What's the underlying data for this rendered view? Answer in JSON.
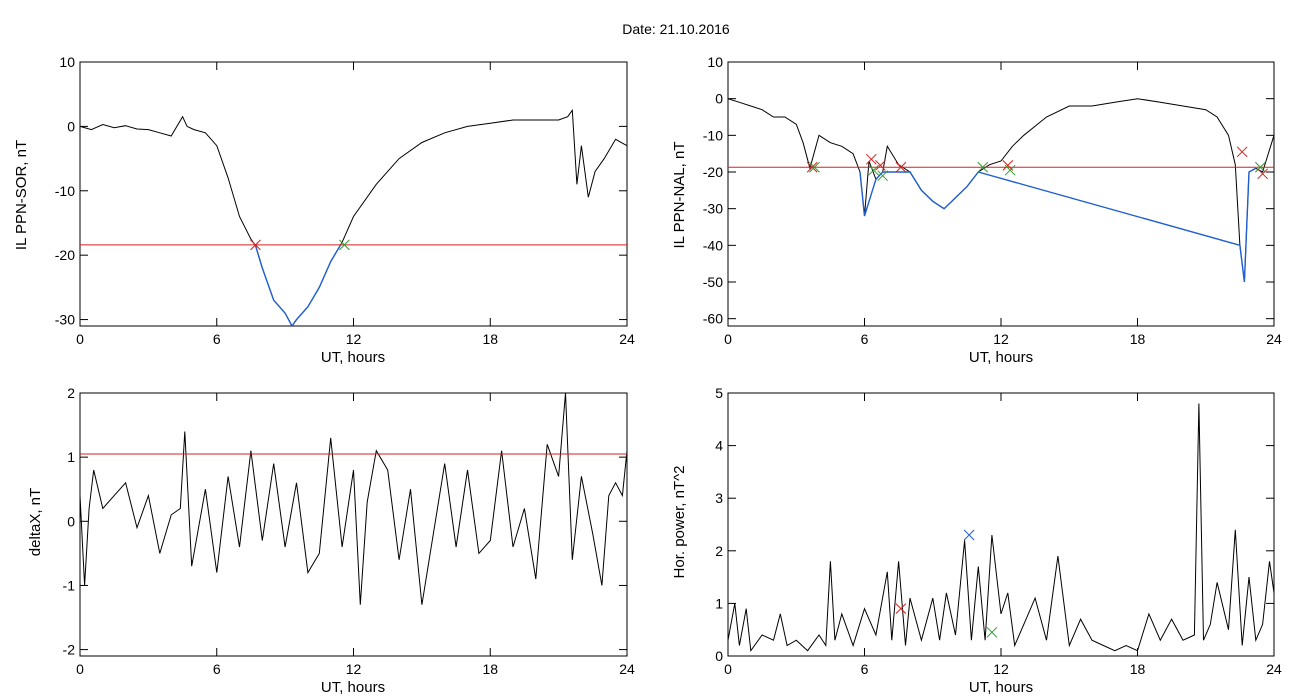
{
  "figure": {
    "title": "Date:  21.10.2016"
  },
  "chart_data": [
    {
      "id": "p1",
      "type": "line",
      "ylabel": "IL PPN-SOR, nT",
      "xlabel": "UT, hours",
      "xlim": [
        0,
        24
      ],
      "ylim": [
        -31,
        10
      ],
      "xticks": [
        0,
        6,
        12,
        18,
        24
      ],
      "yticks": [
        -30,
        -20,
        -10,
        0,
        10
      ],
      "colors": {
        "main": "#000000",
        "highlight": "#1f5fd0",
        "threshold": "#d8201c",
        "start": "#d8201c",
        "end": "#2ca02c"
      },
      "series": [
        {
          "x": [
            0,
            0.5,
            1,
            1.5,
            2,
            2.5,
            3,
            3.5,
            4,
            4.5,
            4.7,
            5,
            5.5,
            6,
            6.5,
            7,
            7.5,
            7.7,
            8,
            8.5,
            9,
            9.3,
            9.5,
            10,
            10.5,
            11,
            11.5,
            12,
            13,
            14,
            15,
            16,
            17,
            18,
            19,
            20,
            21,
            21.4,
            21.6,
            21.8,
            22,
            22.3,
            22.6,
            23,
            23.5,
            24
          ],
          "y": [
            0,
            -0.5,
            0.3,
            -0.2,
            0.1,
            -0.4,
            -0.5,
            -1,
            -1.5,
            1.5,
            0,
            -0.5,
            -1,
            -3,
            -8,
            -14,
            -17.5,
            -18.5,
            -22,
            -27,
            -29,
            -31,
            -30,
            -28,
            -25,
            -21,
            -18,
            -14,
            -9,
            -5,
            -2.5,
            -1,
            0,
            0.5,
            1,
            1,
            1,
            1.5,
            2.5,
            -9,
            -3,
            -11,
            -7,
            -5,
            -2,
            -3
          ]
        }
      ],
      "highlight_range": [
        7.7,
        11.6
      ],
      "threshold": -18.4,
      "markers": [
        {
          "x": 7.7,
          "y": -18.4,
          "kind": "start"
        },
        {
          "x": 11.6,
          "y": -18.4,
          "kind": "end"
        }
      ]
    },
    {
      "id": "p2",
      "type": "line",
      "ylabel": "IL PPN-NAL, nT",
      "xlabel": "UT, hours",
      "xlim": [
        0,
        24
      ],
      "ylim": [
        -62,
        10
      ],
      "xticks": [
        0,
        6,
        12,
        18,
        24
      ],
      "yticks": [
        -60,
        -50,
        -40,
        -30,
        -20,
        -10,
        0,
        10
      ],
      "colors": {
        "main": "#000000",
        "highlight": "#1f5fd0",
        "threshold": "#d8201c",
        "start": "#d8201c",
        "end": "#2ca02c"
      },
      "series": [
        {
          "x": [
            0,
            0.5,
            1,
            1.5,
            2,
            2.5,
            3,
            3.3,
            3.6,
            4,
            4.5,
            5,
            5.5,
            5.8,
            6,
            6.2,
            6.5,
            6.8,
            7,
            7.5,
            8,
            8.5,
            9,
            9.5,
            10,
            10.5,
            11,
            11.5,
            12,
            12.5,
            13,
            14,
            15,
            16,
            17,
            18,
            19,
            20,
            21,
            21.5,
            22,
            22.3,
            22.5,
            22.7,
            22.9,
            23.2,
            23.5,
            24
          ],
          "y": [
            0,
            -1,
            -2,
            -3,
            -5,
            -5,
            -7,
            -12,
            -19,
            -10,
            -12,
            -13,
            -15,
            -20,
            -32,
            -17,
            -22,
            -20,
            -13,
            -18,
            -20,
            -25,
            -28,
            -30,
            -27,
            -24,
            -20,
            -18,
            -17,
            -13,
            -10,
            -5,
            -2,
            -2,
            -1,
            0,
            -1,
            -2,
            -3,
            -5,
            -10,
            -18,
            -40,
            -50,
            -20,
            -19,
            -20,
            -10
          ]
        }
      ],
      "highlight_range": [
        5.7,
        23.3
      ],
      "threshold": -18.7,
      "markers": [
        {
          "x": 3.7,
          "y": -18.7,
          "kind": "start"
        },
        {
          "x": 3.8,
          "y": -18.7,
          "kind": "end"
        },
        {
          "x": 6.3,
          "y": -16.5,
          "kind": "start"
        },
        {
          "x": 6.4,
          "y": -19.5,
          "kind": "end"
        },
        {
          "x": 6.7,
          "y": -18.2,
          "kind": "start"
        },
        {
          "x": 6.8,
          "y": -21,
          "kind": "end"
        },
        {
          "x": 7.6,
          "y": -18.7,
          "kind": "start"
        },
        {
          "x": 11.2,
          "y": -18.7,
          "kind": "end"
        },
        {
          "x": 12.3,
          "y": -18.2,
          "kind": "start"
        },
        {
          "x": 12.4,
          "y": -19.5,
          "kind": "end"
        },
        {
          "x": 22.6,
          "y": -14.5,
          "kind": "start"
        },
        {
          "x": 23.4,
          "y": -18.7,
          "kind": "end"
        },
        {
          "x": 23.5,
          "y": -20.5,
          "kind": "start"
        }
      ]
    },
    {
      "id": "p3",
      "type": "line",
      "ylabel": "deltaX, nT",
      "xlabel": "UT, hours",
      "xlim": [
        0,
        24
      ],
      "ylim": [
        -2.1,
        2
      ],
      "xticks": [
        0,
        6,
        12,
        18,
        24
      ],
      "yticks": [
        -2,
        -1,
        0,
        1,
        2
      ],
      "colors": {
        "main": "#000000",
        "threshold": "#d8201c"
      },
      "series": [
        {
          "x": [
            0,
            0.2,
            0.4,
            0.6,
            1,
            1.5,
            2,
            2.5,
            3,
            3.5,
            4,
            4.4,
            4.6,
            4.9,
            5.5,
            6,
            6.5,
            7,
            7.5,
            8,
            8.5,
            9,
            9.5,
            10,
            10.5,
            11,
            11.5,
            12,
            12.3,
            12.6,
            13,
            13.5,
            14,
            14.5,
            15,
            15.5,
            16,
            16.5,
            17,
            17.5,
            18,
            18.5,
            19,
            19.5,
            20,
            20.5,
            21,
            21.3,
            21.6,
            22,
            22.5,
            22.9,
            23.2,
            23.5,
            23.8,
            24
          ],
          "y": [
            0.4,
            -1,
            0.2,
            0.8,
            0.2,
            0.4,
            0.6,
            -0.1,
            0.4,
            -0.5,
            0.1,
            0.2,
            1.4,
            -0.7,
            0.5,
            -0.8,
            0.7,
            -0.4,
            1.1,
            -0.3,
            0.9,
            -0.4,
            0.6,
            -0.8,
            -0.5,
            1.3,
            -0.4,
            0.8,
            -1.3,
            0.3,
            1.1,
            0.8,
            -0.6,
            0.5,
            -1.3,
            -0.2,
            0.9,
            -0.4,
            0.8,
            -0.5,
            -0.3,
            1.1,
            -0.4,
            0.2,
            -0.9,
            1.2,
            0.7,
            2,
            -0.6,
            0.7,
            -0.2,
            -1,
            0.4,
            0.6,
            0.4,
            1.1
          ]
        }
      ],
      "threshold": 1.05
    },
    {
      "id": "p4",
      "type": "line",
      "ylabel": "Hor. power, nT^2",
      "xlabel": "UT, hours",
      "xlim": [
        0,
        24
      ],
      "ylim": [
        0,
        5
      ],
      "xticks": [
        0,
        6,
        12,
        18,
        24
      ],
      "yticks": [
        0,
        1,
        2,
        3,
        4,
        5
      ],
      "colors": {
        "main": "#000000",
        "marker_blue": "#1f5fd0",
        "marker_red": "#d8201c",
        "marker_green": "#2ca02c"
      },
      "series": [
        {
          "x": [
            0,
            0.3,
            0.5,
            0.8,
            1,
            1.5,
            2,
            2.3,
            2.6,
            3,
            3.5,
            4,
            4.3,
            4.5,
            4.7,
            5,
            5.5,
            6,
            6.5,
            7,
            7.2,
            7.5,
            7.8,
            8,
            8.5,
            9,
            9.3,
            9.6,
            10,
            10.4,
            10.7,
            11,
            11.3,
            11.6,
            12,
            12.3,
            12.6,
            13,
            13.5,
            14,
            14.5,
            15,
            15.5,
            16,
            16.5,
            17,
            17.5,
            18,
            18.5,
            19,
            19.5,
            20,
            20.5,
            20.7,
            20.9,
            21.2,
            21.5,
            22,
            22.3,
            22.6,
            22.9,
            23.2,
            23.5,
            23.8,
            24
          ],
          "y": [
            0.3,
            1,
            0.2,
            0.9,
            0.1,
            0.4,
            0.3,
            0.8,
            0.2,
            0.3,
            0.1,
            0.4,
            0.2,
            1.8,
            0.3,
            0.8,
            0.2,
            0.9,
            0.4,
            1.6,
            0.3,
            1.8,
            0.2,
            1.1,
            0.3,
            1.1,
            0.3,
            1.2,
            0.4,
            2.2,
            0.3,
            1.7,
            0.3,
            2.3,
            0.8,
            1.2,
            0.2,
            0.6,
            1.1,
            0.3,
            1.9,
            0.2,
            0.7,
            0.3,
            0.2,
            0.1,
            0.2,
            0.1,
            0.8,
            0.3,
            0.7,
            0.3,
            0.4,
            4.8,
            0.3,
            0.6,
            1.4,
            0.5,
            2.4,
            0.2,
            1.5,
            0.3,
            0.6,
            1.8,
            1.2
          ]
        }
      ],
      "markers": [
        {
          "x": 10.6,
          "y": 2.3,
          "kind": "blue"
        },
        {
          "x": 7.6,
          "y": 0.9,
          "kind": "red"
        },
        {
          "x": 11.6,
          "y": 0.45,
          "kind": "green"
        }
      ]
    }
  ]
}
